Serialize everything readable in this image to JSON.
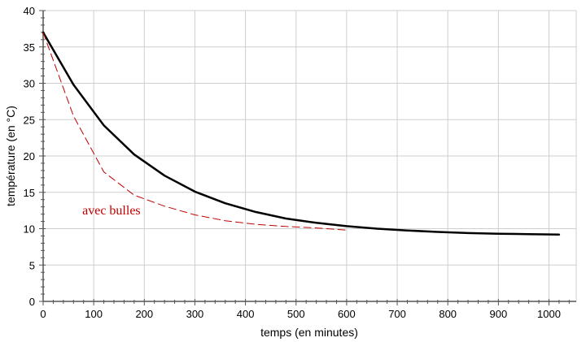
{
  "chart_data": {
    "type": "line",
    "title": "",
    "xlabel": "temps (en minutes)",
    "ylabel": "température (en °C)",
    "xlim": [
      0,
      1000
    ],
    "ylim": [
      0,
      40
    ],
    "x_ticks": [
      0,
      100,
      200,
      300,
      400,
      500,
      600,
      700,
      800,
      900,
      1000
    ],
    "y_ticks": [
      0,
      5,
      10,
      15,
      20,
      25,
      30,
      35,
      40
    ],
    "grid": true,
    "series": [
      {
        "name": "",
        "style": "solid",
        "color": "#000000",
        "x": [
          0,
          60,
          120,
          180,
          240,
          300,
          360,
          420,
          480,
          540,
          600,
          660,
          720,
          780,
          840,
          900,
          960,
          1020
        ],
        "y": [
          37,
          29.8,
          24.2,
          20.2,
          17.3,
          15.1,
          13.5,
          12.3,
          11.4,
          10.8,
          10.35,
          10.0,
          9.75,
          9.55,
          9.4,
          9.3,
          9.25,
          9.2
        ]
      },
      {
        "name": "avec bulles",
        "style": "dashed",
        "color": "#c00000",
        "x": [
          0,
          60,
          120,
          180,
          240,
          300,
          360,
          420,
          480,
          540,
          600
        ],
        "y": [
          37,
          25.5,
          17.8,
          14.6,
          13.1,
          11.9,
          11.1,
          10.6,
          10.3,
          10.1,
          9.8
        ]
      }
    ],
    "annotations": [
      {
        "text": "avec bulles",
        "x": 135,
        "y": 12.5,
        "color": "#c00000"
      }
    ]
  }
}
